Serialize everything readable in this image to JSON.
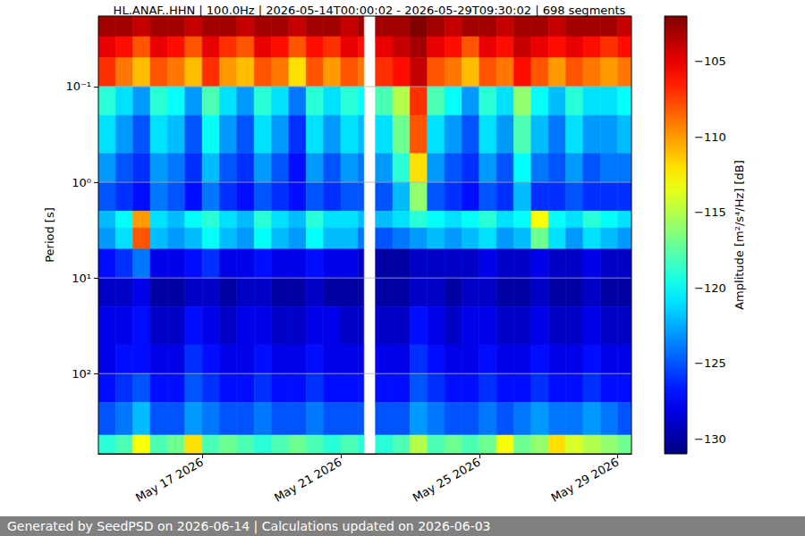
{
  "chart_data": {
    "type": "heatmap",
    "title": "HL.ANAF..HHN | 100.0Hz | 2026-05-14T00:00:02 - 2026-05-29T09:30:02 | 698 segments",
    "footer": "Generated by SeedPSD on 2026-06-14 | Calculations updated on 2026-06-03",
    "y_label": "Period [s]",
    "log": "y",
    "grid": true,
    "xlim": [
      "2026-05-14T00:00:02",
      "2026-05-29T09:30:02"
    ],
    "xticks": [
      {
        "value": "2026-05-17",
        "label": "May 17 2026"
      },
      {
        "value": "2026-05-21",
        "label": "May 21 2026"
      },
      {
        "value": "2026-05-25",
        "label": "May 25 2026"
      },
      {
        "value": "2026-05-29",
        "label": "May 29 2026"
      }
    ],
    "ylim": [
      0.0183,
      690
    ],
    "yticks": [
      {
        "value": 0.1,
        "label": "10⁻¹"
      },
      {
        "value": 1,
        "label": "10⁰"
      },
      {
        "value": 10,
        "label": "10¹"
      },
      {
        "value": 100,
        "label": "10²"
      }
    ],
    "x_edges": [
      "2026-05-14T00:00:02",
      "2026-05-14T12:00",
      "2026-05-15T00:00",
      "2026-05-15T12:00",
      "2026-05-16T00:00",
      "2026-05-16T12:00",
      "2026-05-17T00:00",
      "2026-05-17T12:00",
      "2026-05-18T00:00",
      "2026-05-18T12:00",
      "2026-05-19T00:00",
      "2026-05-19T12:00",
      "2026-05-20T00:00",
      "2026-05-20T12:00",
      "2026-05-21T00:00",
      "2026-05-21T12:00",
      "2026-05-21T16:00",
      "2026-05-22T00:00",
      "2026-05-22T12:00",
      "2026-05-23T00:00",
      "2026-05-23T12:00",
      "2026-05-24T00:00",
      "2026-05-24T12:00",
      "2026-05-25T00:00",
      "2026-05-25T12:00",
      "2026-05-26T00:00",
      "2026-05-26T12:00",
      "2026-05-27T00:00",
      "2026-05-27T12:00",
      "2026-05-28T00:00",
      "2026-05-28T12:00",
      "2026-05-29T00:00",
      "2026-05-29T09:30:02"
    ],
    "y_edges": [
      0.0183,
      0.03,
      0.05,
      0.1,
      0.2,
      0.5,
      1,
      2,
      3,
      5,
      10,
      20,
      50,
      100,
      200,
      440,
      690
    ],
    "cells": [
      [
        -103,
        -103,
        -104,
        -103,
        -103,
        -104,
        -103,
        -103,
        -104,
        -103,
        -103,
        -104,
        -103,
        -103,
        -104,
        -103,
        null,
        -103,
        -103,
        -102,
        -103,
        -104,
        -103,
        -103,
        -104,
        -103,
        -103,
        -104,
        -103,
        -103,
        -103,
        -104
      ],
      [
        -105,
        -106,
        -108,
        -105,
        -106,
        -108,
        -105,
        -107,
        -108,
        -105,
        -106,
        -108,
        -106,
        -107,
        -105,
        -106,
        null,
        -105,
        -104,
        -103,
        -105,
        -106,
        -108,
        -105,
        -106,
        -104,
        -105,
        -106,
        -105,
        -106,
        -107,
        -106
      ],
      [
        -107,
        -109,
        -111,
        -108,
        -109,
        -111,
        -107,
        -110,
        -111,
        -108,
        -109,
        -112,
        -108,
        -110,
        -108,
        -109,
        null,
        -107,
        -106,
        -104,
        -108,
        -109,
        -111,
        -108,
        -109,
        -106,
        -108,
        -110,
        -108,
        -109,
        -110,
        -109
      ],
      [
        -119,
        -121,
        -123,
        -119,
        -120,
        -123,
        -118,
        -121,
        -123,
        -119,
        -121,
        -124,
        -119,
        -121,
        -119,
        -120,
        null,
        -118,
        -115,
        -107,
        -118,
        -120,
        -123,
        -119,
        -121,
        -116,
        -120,
        -122,
        -119,
        -121,
        -121,
        -120
      ],
      [
        -121,
        -123,
        -125,
        -121,
        -122,
        -125,
        -120,
        -123,
        -125,
        -121,
        -123,
        -126,
        -121,
        -123,
        -121,
        -122,
        null,
        -121,
        -117,
        -108,
        -121,
        -123,
        -125,
        -121,
        -123,
        -118,
        -122,
        -124,
        -121,
        -123,
        -123,
        -122
      ],
      [
        -123,
        -125,
        -126,
        -123,
        -124,
        -126,
        -122,
        -125,
        -126,
        -123,
        -125,
        -127,
        -123,
        -125,
        -123,
        -124,
        null,
        -123,
        -119,
        -112,
        -123,
        -125,
        -126,
        -123,
        -125,
        -120,
        -124,
        -125,
        -123,
        -125,
        -124,
        -124
      ],
      [
        -125,
        -126,
        -127,
        -124,
        -125,
        -127,
        -124,
        -126,
        -127,
        -125,
        -126,
        -127,
        -125,
        -126,
        -125,
        -125,
        null,
        -125,
        -122,
        -116,
        -125,
        -126,
        -127,
        -125,
        -126,
        -122,
        -126,
        -126,
        -125,
        -126,
        -126,
        -126
      ],
      [
        -122,
        -120,
        -110,
        -121,
        -122,
        -120,
        -119,
        -121,
        -122,
        -119,
        -121,
        -122,
        -119,
        -121,
        -121,
        -122,
        null,
        -122,
        -121,
        -119,
        -120,
        -121,
        -120,
        -119,
        -121,
        -120,
        -113,
        -120,
        -121,
        -119,
        -120,
        -121
      ],
      [
        -123,
        -121,
        -108,
        -122,
        -123,
        -122,
        -120,
        -122,
        -123,
        -120,
        -122,
        -123,
        -120,
        -122,
        -122,
        -124,
        null,
        -125,
        -124,
        -123,
        -122,
        -123,
        -122,
        -121,
        -123,
        -122,
        -117,
        -121,
        -123,
        -121,
        -122,
        -123
      ],
      [
        -127,
        -126,
        -124,
        -128,
        -128,
        -127,
        -126,
        -128,
        -128,
        -127,
        -128,
        -128,
        -127,
        -128,
        -128,
        -129,
        null,
        -130,
        -130,
        -129,
        -129,
        -129,
        -129,
        -128,
        -129,
        -129,
        -128,
        -129,
        -129,
        -128,
        -129,
        -129
      ],
      [
        -129,
        -129,
        -128,
        -130,
        -130,
        -129,
        -129,
        -130,
        -129,
        -129,
        -130,
        -130,
        -129,
        -130,
        -130,
        -130,
        null,
        -130,
        -130,
        -129,
        -129,
        -130,
        -129,
        -129,
        -130,
        -130,
        -129,
        -130,
        -130,
        -129,
        -130,
        -130
      ],
      [
        -128,
        -128,
        -127,
        -129,
        -129,
        -127,
        -128,
        -129,
        -128,
        -128,
        -129,
        -129,
        -128,
        -128,
        -129,
        -129,
        null,
        -129,
        -129,
        -127,
        -128,
        -129,
        -128,
        -128,
        -129,
        -129,
        -128,
        -129,
        -129,
        -128,
        -129,
        -129
      ],
      [
        -128,
        -127,
        -127,
        -128,
        -128,
        -126,
        -127,
        -128,
        -128,
        -127,
        -128,
        -128,
        -127,
        -128,
        -128,
        -128,
        null,
        -128,
        -128,
        -126,
        -127,
        -128,
        -128,
        -127,
        -128,
        -128,
        -127,
        -128,
        -128,
        -127,
        -128,
        -128
      ],
      [
        -127,
        -126,
        -125,
        -127,
        -127,
        -125,
        -126,
        -127,
        -127,
        -126,
        -127,
        -127,
        -126,
        -127,
        -127,
        -127,
        null,
        -127,
        -127,
        -125,
        -126,
        -127,
        -127,
        -126,
        -127,
        -127,
        -126,
        -127,
        -127,
        -126,
        -127,
        -127
      ],
      [
        -125,
        -124,
        -122,
        -125,
        -125,
        -123,
        -124,
        -125,
        -125,
        -124,
        -125,
        -125,
        -124,
        -125,
        -125,
        -125,
        null,
        -125,
        -125,
        -123,
        -124,
        -125,
        -125,
        -124,
        -125,
        -124,
        -123,
        -124,
        -124,
        -123,
        -124,
        -125
      ],
      [
        -119,
        -118,
        -113,
        -118,
        -117,
        -112,
        -118,
        -117,
        -118,
        -119,
        -118,
        -117,
        -118,
        -119,
        -118,
        -119,
        null,
        -119,
        -118,
        -115,
        -118,
        -117,
        -118,
        -117,
        -113,
        -117,
        -116,
        -112,
        -114,
        -115,
        -116,
        -117
      ]
    ],
    "colorbar": {
      "label": "Amplitude [m²/s⁴/Hz] [dB]",
      "range": [
        -131,
        -102
      ],
      "ticks": [
        {
          "value": -130,
          "label": "−130"
        },
        {
          "value": -125,
          "label": "−125"
        },
        {
          "value": -120,
          "label": "−120"
        },
        {
          "value": -115,
          "label": "−115"
        },
        {
          "value": -110,
          "label": "−110"
        },
        {
          "value": -105,
          "label": "−105"
        }
      ]
    }
  }
}
